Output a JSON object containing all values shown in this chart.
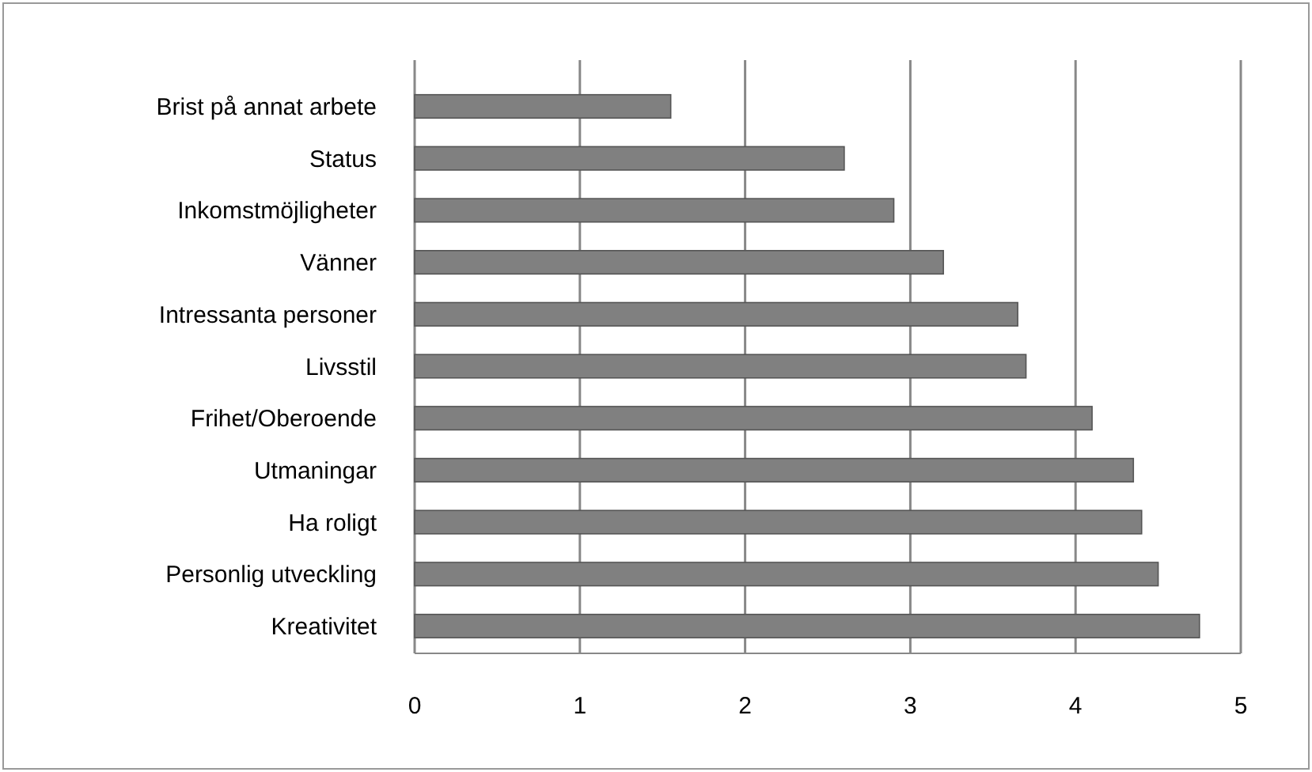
{
  "chart_data": {
    "type": "bar",
    "orientation": "horizontal",
    "categories": [
      "Brist på annat arbete",
      "Status",
      "Inkomstmöjligheter",
      "Vänner",
      "Intressanta personer",
      "Livsstil",
      "Frihet/Oberoende",
      "Utmaningar",
      "Ha roligt",
      "Personlig utveckling",
      "Kreativitet"
    ],
    "values": [
      1.55,
      2.6,
      2.9,
      3.2,
      3.65,
      3.7,
      4.1,
      4.35,
      4.4,
      4.5,
      4.75
    ],
    "color": "#808080",
    "xlim": [
      0,
      5
    ],
    "xticks": [
      0,
      1,
      2,
      3,
      4,
      5
    ],
    "grid": "x"
  }
}
